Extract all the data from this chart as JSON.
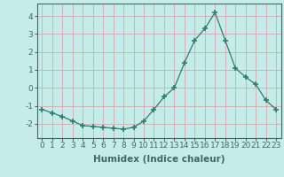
{
  "x": [
    0,
    1,
    2,
    3,
    4,
    5,
    6,
    7,
    8,
    9,
    10,
    11,
    12,
    13,
    14,
    15,
    16,
    17,
    18,
    19,
    20,
    21,
    22,
    23
  ],
  "y": [
    -1.2,
    -1.4,
    -1.6,
    -1.85,
    -2.1,
    -2.15,
    -2.2,
    -2.25,
    -2.3,
    -2.2,
    -1.85,
    -1.2,
    -0.5,
    0.0,
    1.4,
    2.65,
    3.3,
    4.2,
    2.65,
    1.1,
    0.6,
    0.2,
    -0.7,
    -1.2
  ],
  "line_color": "#2e7d6e",
  "marker": "+",
  "marker_size": 4,
  "marker_lw": 1.2,
  "bg_color": "#c5ece8",
  "grid_color": "#d4a8a8",
  "xlabel": "Humidex (Indice chaleur)",
  "ylim": [
    -2.8,
    4.7
  ],
  "xlim": [
    -0.5,
    23.5
  ],
  "yticks": [
    -2,
    -1,
    0,
    1,
    2,
    3,
    4
  ],
  "xticks": [
    0,
    1,
    2,
    3,
    4,
    5,
    6,
    7,
    8,
    9,
    10,
    11,
    12,
    13,
    14,
    15,
    16,
    17,
    18,
    19,
    20,
    21,
    22,
    23
  ],
  "tick_fontsize": 6.5,
  "xlabel_fontsize": 7.5,
  "spine_color": "#446666"
}
